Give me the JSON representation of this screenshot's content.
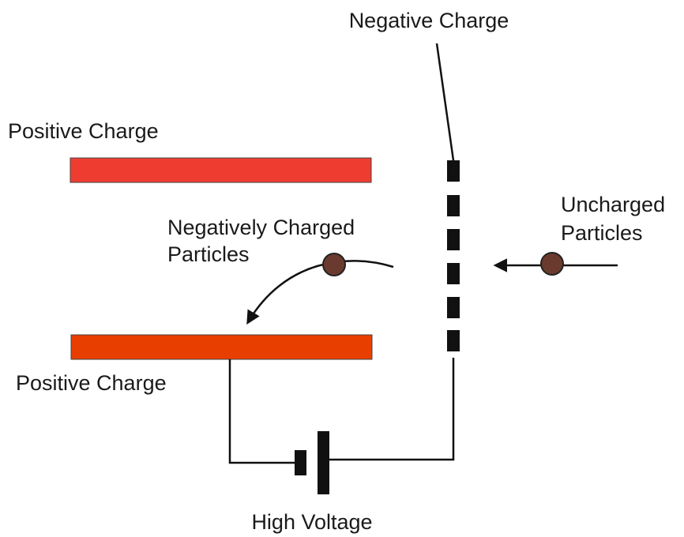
{
  "labels": {
    "negative_charge": "Negative Charge",
    "positive_charge_top": "Positive Charge",
    "positive_charge_bottom": "Positive Charge",
    "negatively_charged_particles": [
      "Negatively Charged",
      "Particles"
    ],
    "uncharged_particles": [
      "Uncharged",
      "Particles"
    ],
    "high_voltage": "High Voltage"
  }
}
